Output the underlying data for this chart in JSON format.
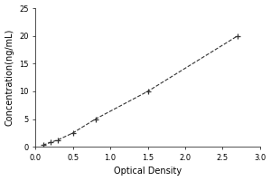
{
  "xlabel": "Optical Density",
  "ylabel": "Concentration(ng/mL)",
  "x_data": [
    0.1,
    0.2,
    0.3,
    0.5,
    0.8,
    1.5,
    2.7
  ],
  "y_data": [
    0.3,
    0.8,
    1.25,
    2.5,
    5.0,
    10.0,
    20.0
  ],
  "xlim": [
    0,
    3
  ],
  "ylim": [
    0,
    25
  ],
  "xticks": [
    0,
    0.5,
    1,
    1.5,
    2,
    2.5,
    3
  ],
  "yticks": [
    0,
    5,
    10,
    15,
    20,
    25
  ],
  "line_color": "#333333",
  "marker_color": "#333333",
  "bg_color": "#ffffff",
  "xlabel_fontsize": 7,
  "ylabel_fontsize": 7,
  "tick_fontsize": 6
}
